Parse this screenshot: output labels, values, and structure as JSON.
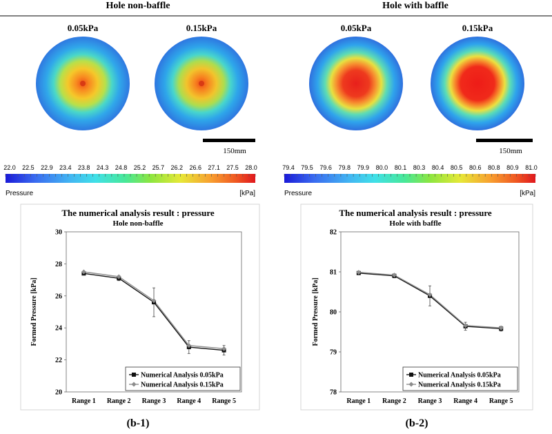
{
  "headers": {
    "left": "Hole non-baffle",
    "right": "Hole with baffle"
  },
  "contour_panels": {
    "left": {
      "labels": [
        "0.05kPa",
        "0.15kPa"
      ],
      "scale_bar": "150mm"
    },
    "right": {
      "labels": [
        "0.05kPa",
        "0.15kPa"
      ],
      "scale_bar": "150mm"
    }
  },
  "colorbars": [
    {
      "ticks": [
        "22.0",
        "22.5",
        "22.9",
        "23.4",
        "23.8",
        "24.3",
        "24.8",
        "25.2",
        "25.7",
        "26.2",
        "26.6",
        "27.1",
        "27.5",
        "28.0"
      ],
      "label": "Pressure",
      "unit": "[kPa]"
    },
    {
      "ticks": [
        "79.4",
        "79.5",
        "79.6",
        "79.8",
        "79.9",
        "80.0",
        "80.1",
        "80.3",
        "80.4",
        "80.5",
        "80.6",
        "80.8",
        "80.9",
        "81.0"
      ],
      "label": "Pressure",
      "unit": "[kPa]"
    }
  ],
  "chart_data": [
    {
      "type": "line",
      "title": "The numerical analysis result : pressure",
      "subtitle": "Hole non-baffle",
      "ylabel": "Formed Pressure [kPa]",
      "ylim": [
        20,
        30
      ],
      "yticks": [
        20,
        22,
        24,
        26,
        28,
        30
      ],
      "categories": [
        "Range 1",
        "Range 2",
        "Range 3",
        "Range 4",
        "Range 5"
      ],
      "series": [
        {
          "name": "Numerical Analysis 0.05kPa",
          "values": [
            27.4,
            27.1,
            25.6,
            22.8,
            22.6
          ],
          "color": "#111111"
        },
        {
          "name": "Numerical Analysis 0.15kPa",
          "values": [
            27.5,
            27.2,
            25.7,
            22.9,
            22.7
          ],
          "color": "#8c8c8c"
        }
      ],
      "error_bars": [
        0.1,
        0.15,
        0.9,
        0.4,
        0.3
      ],
      "caption": "(b-1)"
    },
    {
      "type": "line",
      "title": "The numerical analysis result : pressure",
      "subtitle": "Hole with baffle",
      "ylabel": "Formed Pressure [kPa]",
      "ylim": [
        78,
        82
      ],
      "yticks": [
        78,
        79,
        80,
        81,
        82
      ],
      "categories": [
        "Range 1",
        "Range 2",
        "Range 3",
        "Range 4",
        "Range 5"
      ],
      "series": [
        {
          "name": "Numerical Analysis 0.05kPa",
          "values": [
            80.97,
            80.9,
            80.4,
            79.64,
            79.58
          ],
          "color": "#111111"
        },
        {
          "name": "Numerical Analysis 0.15kPa",
          "values": [
            80.99,
            80.92,
            80.43,
            79.66,
            79.6
          ],
          "color": "#8c8c8c"
        }
      ],
      "error_bars": [
        0.04,
        0.05,
        0.25,
        0.1,
        0.06
      ],
      "caption": "(b-2)"
    }
  ]
}
